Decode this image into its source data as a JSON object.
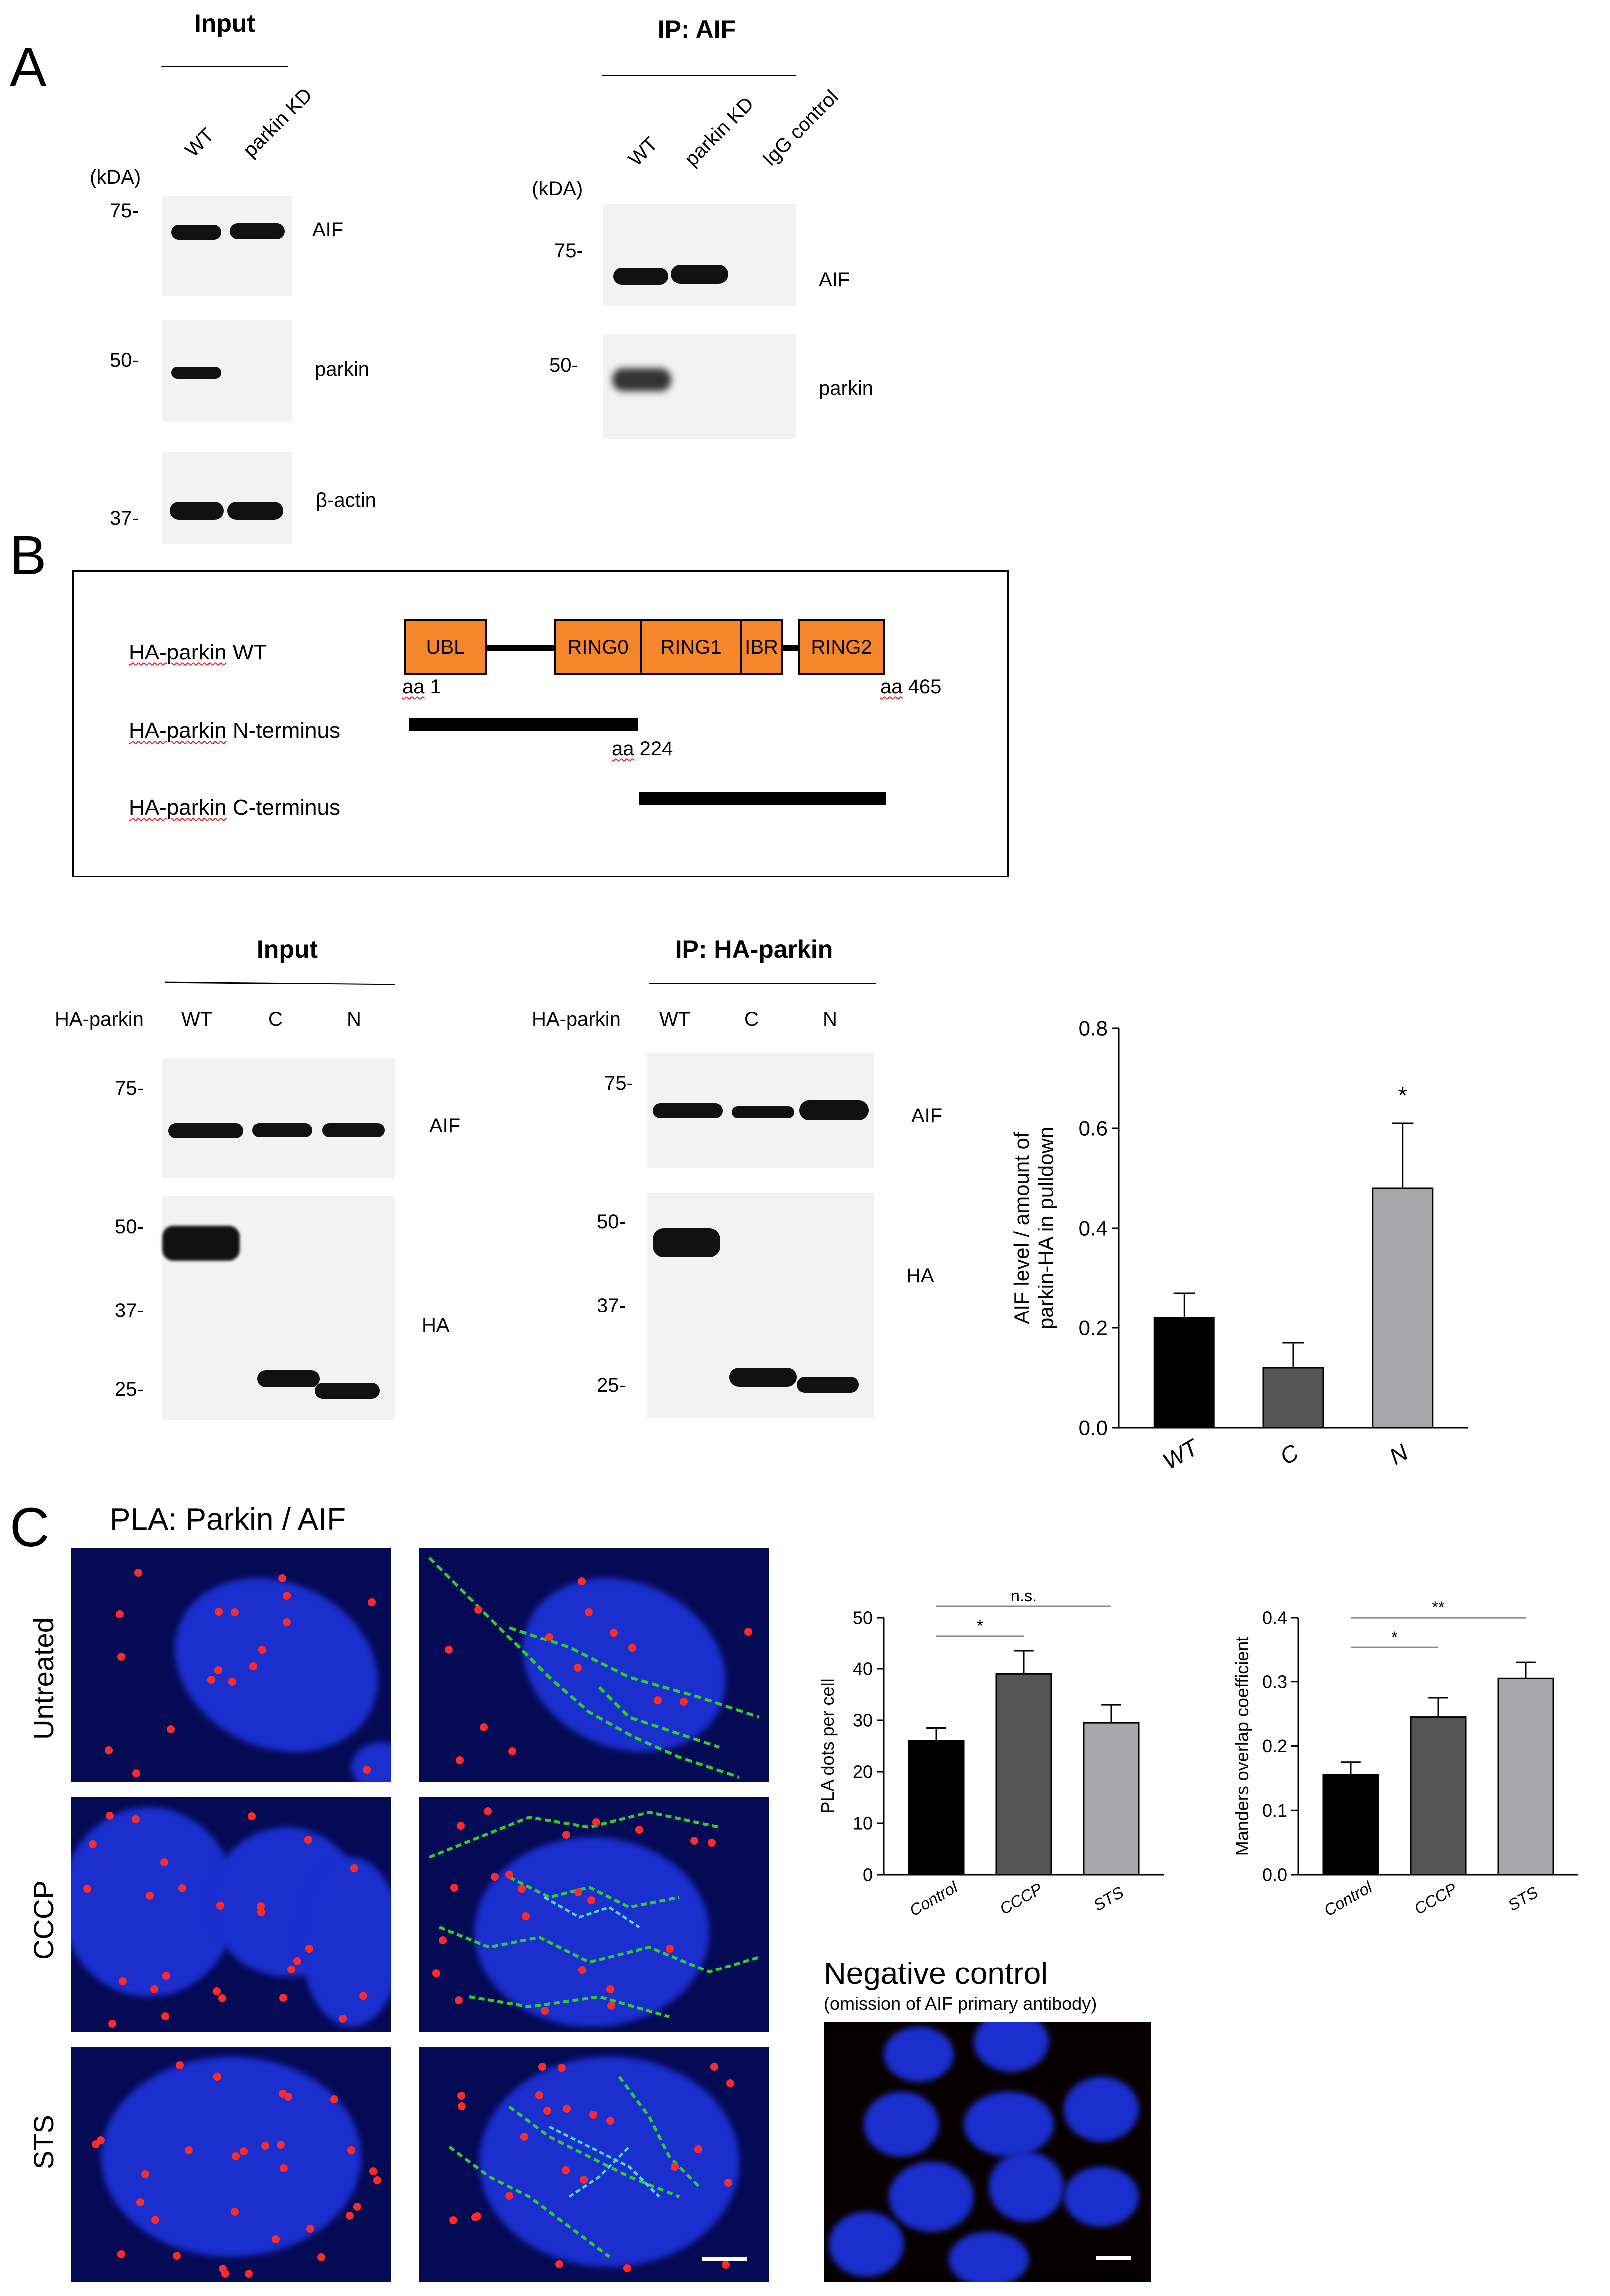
{
  "panelA": {
    "letter": "A",
    "input_header": "Input",
    "ip_header": "IP: AIF",
    "kda": "(kDA)",
    "input_lanes": [
      "WT",
      "parkin KD"
    ],
    "ip_lanes": [
      "WT",
      "parkin KD",
      "IgG control"
    ],
    "input_blots": [
      {
        "marker": "75-",
        "label": "AIF"
      },
      {
        "marker": "50-",
        "label": "parkin"
      },
      {
        "marker": "37-",
        "label": "β-actin"
      }
    ],
    "ip_blots": [
      {
        "marker": "75-",
        "label": "AIF"
      },
      {
        "marker": "50-",
        "label": "parkin"
      }
    ]
  },
  "panelB": {
    "letter": "B",
    "constructs": {
      "wt": "HA-parkin WT",
      "n": "HA-parkin N-terminus",
      "c": "HA-parkin C-terminus"
    },
    "domains": [
      "UBL",
      "RING0",
      "RING1",
      "IBR",
      "RING2"
    ],
    "aa_start": "aa 1",
    "aa_mid": "aa 224",
    "aa_end": "aa 465",
    "input_header": "Input",
    "ip_header": "IP: HA-parkin",
    "row_label": "HA-parkin",
    "lanes": [
      "WT",
      "C",
      "N"
    ],
    "input_markers_top": [
      "75-"
    ],
    "input_markers_bottom": [
      "50-",
      "37-",
      "25-"
    ],
    "ip_markers_top": [
      "75-"
    ],
    "ip_markers_bottom": [
      "50-",
      "37-",
      "25-"
    ],
    "blot_labels": [
      "AIF",
      "HA"
    ]
  },
  "chart_data": [
    {
      "type": "bar",
      "categories": [
        "WT",
        "C",
        "N"
      ],
      "values": [
        0.22,
        0.12,
        0.48
      ],
      "errors": [
        0.05,
        0.05,
        0.13
      ],
      "colors": [
        "#000000",
        "#555555",
        "#a7a7a9"
      ],
      "ylabel": "AIF level / amount of parkin-HA in pulldown",
      "ylim": [
        0,
        0.8
      ],
      "yticks": [
        "0.0",
        "0.2",
        "0.4",
        "0.6",
        "0.8"
      ],
      "significance": [
        {
          "category": "N",
          "mark": "*"
        }
      ]
    },
    {
      "type": "bar",
      "categories": [
        "Control",
        "CCCP",
        "STS"
      ],
      "values": [
        26,
        39,
        29.5
      ],
      "errors": [
        2.5,
        4.5,
        3.5
      ],
      "colors": [
        "#000000",
        "#555555",
        "#a7a7a9"
      ],
      "ylabel": "PLA dots per cell",
      "ylim": [
        0,
        50
      ],
      "yticks": [
        "0",
        "10",
        "20",
        "30",
        "40",
        "50"
      ],
      "significance": [
        {
          "pair": [
            "Control",
            "CCCP"
          ],
          "mark": "*"
        },
        {
          "pair": [
            "Control",
            "STS"
          ],
          "mark": "n.s."
        }
      ]
    },
    {
      "type": "bar",
      "categories": [
        "Control",
        "CCCP",
        "STS"
      ],
      "values": [
        0.155,
        0.245,
        0.305
      ],
      "errors": [
        0.02,
        0.03,
        0.025
      ],
      "colors": [
        "#000000",
        "#555555",
        "#a7a7a9"
      ],
      "ylabel": "Manders overlap coefficient",
      "ylim": [
        0,
        0.4
      ],
      "yticks": [
        "0.0",
        "0.1",
        "0.2",
        "0.3",
        "0.4"
      ],
      "significance": [
        {
          "pair": [
            "Control",
            "CCCP"
          ],
          "mark": "*"
        },
        {
          "pair": [
            "Control",
            "STS"
          ],
          "mark": "**"
        }
      ]
    }
  ],
  "panelC": {
    "letter": "C",
    "title": "PLA: Parkin / AIF",
    "rows": [
      "Untreated",
      "CCCP",
      "STS"
    ],
    "neg_title": "Negative control",
    "neg_subtitle": "(omission of AIF primary antibody)"
  }
}
